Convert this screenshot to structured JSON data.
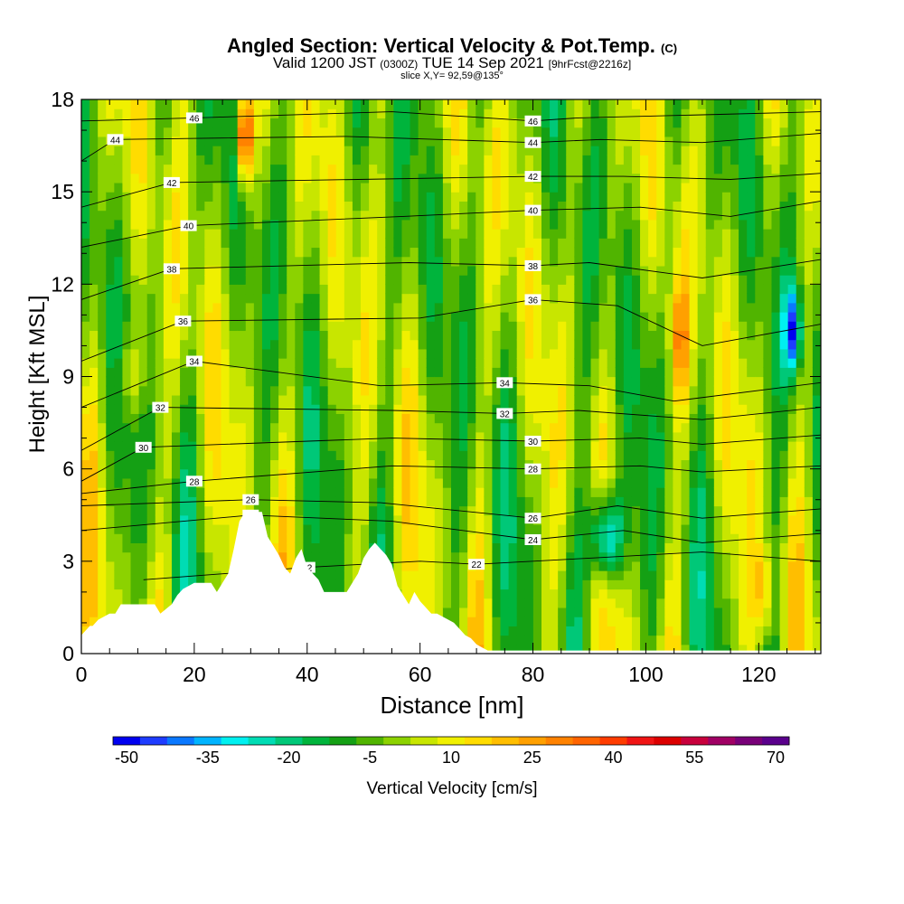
{
  "header": {
    "title": "Angled Section: Vertical Velocity & Pot.Temp.",
    "title_suffix": "(C)",
    "subtitle_a": "Valid 1200 JST",
    "subtitle_b": "(0300Z)",
    "subtitle_c": "TUE 14 Sep 2021",
    "subtitle_d": "[9hrFcst@2216z]",
    "slice": "slice X,Y= 92,59@135°"
  },
  "chart_data": {
    "type": "heatmap",
    "xlabel": "Distance [nm]",
    "ylabel": "Height [Kft MSL]",
    "xlim": [
      0,
      131
    ],
    "ylim": [
      0,
      18
    ],
    "x_ticks": [
      0,
      20,
      40,
      60,
      80,
      100,
      120
    ],
    "y_ticks": [
      0,
      3,
      6,
      9,
      12,
      15,
      18
    ],
    "colorbar": {
      "title": "Vertical Velocity [cm/s]",
      "tick_labels": [
        "-50",
        "-35",
        "-20",
        "-5",
        "10",
        "25",
        "40",
        "55",
        "70"
      ],
      "min": -50,
      "step": 5,
      "colors": [
        "#0000f0",
        "#1e3cff",
        "#0a78ff",
        "#00b4ff",
        "#00f0f0",
        "#00dcb4",
        "#00c878",
        "#00b43c",
        "#14a014",
        "#50b400",
        "#8cd200",
        "#c8e600",
        "#f0f000",
        "#ffdc00",
        "#ffbe00",
        "#ffa000",
        "#ff8200",
        "#ff6400",
        "#ff3c00",
        "#f01414",
        "#dc0000",
        "#c8003c",
        "#a00064",
        "#780078",
        "#5a008c"
      ]
    },
    "terrain_profile": {
      "x": [
        0,
        1.5,
        2,
        3,
        5,
        6,
        7,
        8,
        9,
        10,
        11,
        13,
        14,
        16,
        17,
        18,
        20,
        22,
        23,
        24,
        25,
        26,
        27,
        28,
        29,
        30,
        31,
        32,
        33,
        34,
        35,
        36,
        37,
        38,
        39,
        40,
        41,
        42,
        43,
        44,
        45,
        46,
        47,
        48,
        49,
        50,
        51,
        52,
        53,
        54,
        55,
        56,
        57,
        58,
        59,
        60,
        61,
        62,
        63,
        64,
        65,
        66,
        67,
        68,
        69,
        70,
        71,
        72,
        131
      ],
      "height": [
        0.6,
        0.9,
        0.9,
        1.1,
        1.3,
        1.3,
        1.6,
        1.6,
        1.6,
        1.6,
        1.6,
        1.6,
        1.3,
        1.6,
        1.9,
        2.1,
        2.3,
        2.3,
        2.3,
        2.0,
        2.3,
        2.6,
        3.4,
        4.3,
        4.6,
        4.6,
        4.6,
        4.6,
        3.8,
        3.5,
        3.2,
        2.8,
        2.6,
        3.1,
        3.4,
        2.8,
        2.6,
        2.4,
        2.0,
        2.0,
        2.0,
        2.0,
        2.0,
        2.3,
        2.6,
        3.1,
        3.4,
        3.6,
        3.4,
        3.2,
        2.9,
        2.2,
        1.9,
        1.6,
        2.0,
        1.7,
        1.5,
        1.3,
        1.3,
        1.2,
        1.1,
        1.0,
        0.8,
        0.6,
        0.5,
        0.3,
        0.2,
        0.1,
        0.1
      ]
    },
    "theta_contours": [
      {
        "label": "22",
        "x": [
          11,
          40,
          60,
          70,
          90,
          110,
          131
        ],
        "y": [
          2.4,
          2.8,
          3.0,
          2.9,
          3.1,
          3.3,
          3.0
        ]
      },
      {
        "label": "24",
        "x": [
          0,
          30,
          55,
          80,
          96,
          110,
          131
        ],
        "y": [
          4.0,
          4.5,
          4.3,
          3.7,
          4.0,
          3.6,
          3.9
        ]
      },
      {
        "label": "26",
        "x": [
          0,
          30,
          53,
          80,
          95,
          110,
          131
        ],
        "y": [
          4.8,
          5.0,
          4.9,
          4.4,
          4.8,
          4.4,
          4.7
        ]
      },
      {
        "label": "28",
        "x": [
          0,
          20,
          55,
          80,
          99,
          110,
          131
        ],
        "y": [
          5.2,
          5.6,
          6.1,
          6.0,
          6.1,
          5.9,
          6.1
        ]
      },
      {
        "label": "30",
        "x": [
          0,
          11,
          55,
          80,
          99,
          110,
          131
        ],
        "y": [
          5.6,
          6.7,
          7.0,
          6.9,
          7.0,
          6.8,
          7.1
        ]
      },
      {
        "label": "32",
        "x": [
          0,
          14,
          55,
          75,
          88,
          110,
          131
        ],
        "y": [
          6.6,
          8.0,
          7.9,
          7.8,
          7.9,
          7.6,
          8.0
        ]
      },
      {
        "label": "34",
        "x": [
          0,
          20,
          53,
          75,
          90,
          105,
          131
        ],
        "y": [
          8.0,
          9.5,
          8.7,
          8.8,
          8.7,
          8.2,
          8.8
        ]
      },
      {
        "label": "36",
        "x": [
          0,
          18,
          60,
          80,
          95,
          110,
          131
        ],
        "y": [
          9.5,
          10.8,
          10.9,
          11.5,
          11.3,
          10.0,
          10.7
        ]
      },
      {
        "label": "38",
        "x": [
          0,
          16,
          58,
          80,
          90,
          110,
          131
        ],
        "y": [
          11.5,
          12.5,
          12.7,
          12.6,
          12.7,
          12.2,
          12.8
        ]
      },
      {
        "label": "40",
        "x": [
          0,
          19,
          57,
          80,
          99,
          115,
          131
        ],
        "y": [
          13.2,
          13.9,
          14.2,
          14.4,
          14.5,
          14.2,
          14.7
        ]
      },
      {
        "label": "42",
        "x": [
          0,
          16,
          49,
          80,
          96,
          115,
          131
        ],
        "y": [
          14.5,
          15.3,
          15.4,
          15.5,
          15.5,
          15.4,
          15.6
        ]
      },
      {
        "label": "44",
        "x": [
          0,
          6,
          47,
          80,
          92,
          110,
          131
        ],
        "y": [
          16.0,
          16.7,
          16.8,
          16.6,
          16.7,
          16.6,
          16.9
        ]
      },
      {
        "label": "46",
        "x": [
          0,
          20,
          55,
          80,
          88,
          110,
          131
        ],
        "y": [
          17.3,
          17.4,
          17.6,
          17.3,
          17.4,
          17.5,
          17.6
        ]
      }
    ]
  }
}
